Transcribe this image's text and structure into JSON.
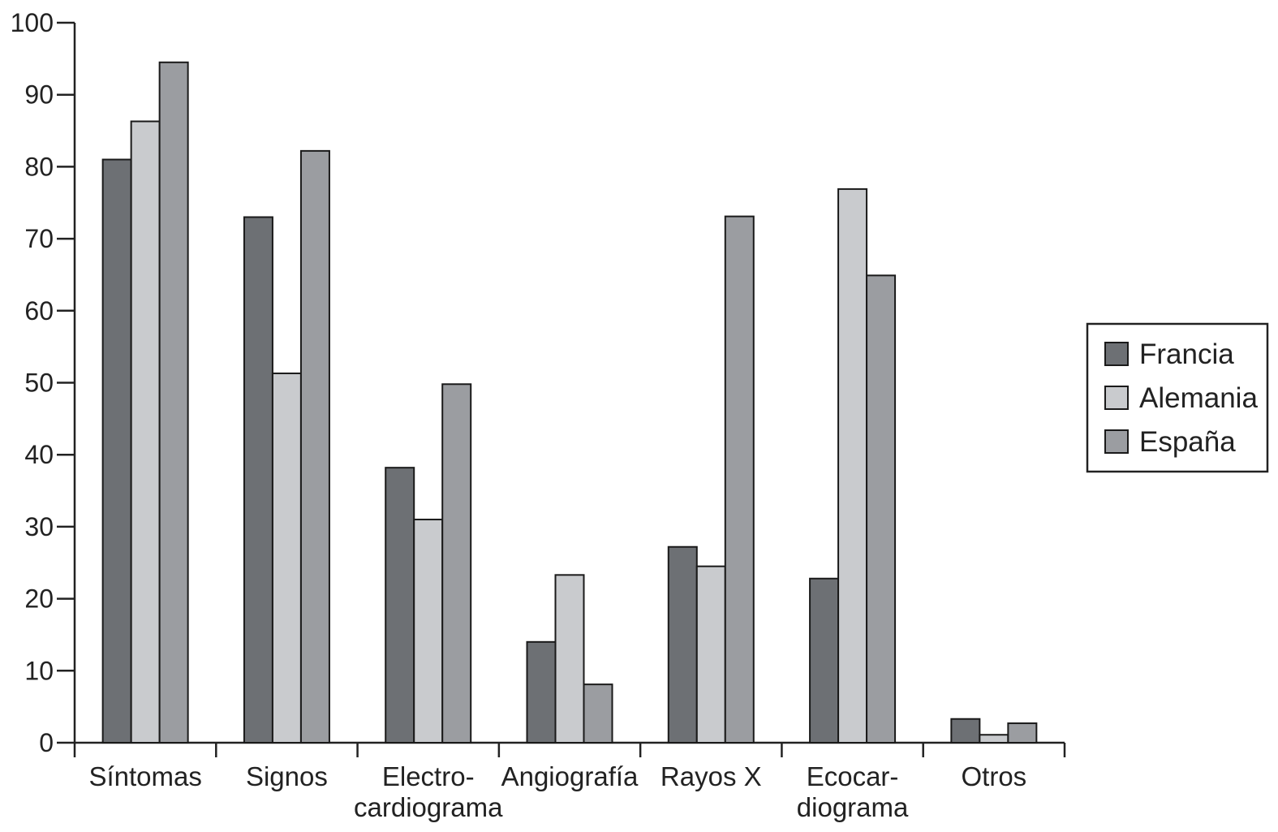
{
  "chart_data": {
    "type": "bar",
    "title": "",
    "xlabel": "",
    "ylabel": "",
    "ylim": [
      0,
      100
    ],
    "yticks": [
      0,
      10,
      20,
      30,
      40,
      50,
      60,
      70,
      80,
      90,
      100
    ],
    "grid": false,
    "legend_position": "right",
    "categories": [
      [
        "Síntomas"
      ],
      [
        "Signos"
      ],
      [
        "Electro-",
        "cardiograma"
      ],
      [
        "Angiografía"
      ],
      [
        "Rayos X"
      ],
      [
        "Ecocar-",
        "diograma"
      ],
      [
        "Otros"
      ]
    ],
    "series": [
      {
        "name": "Francia",
        "color": "#6d7074",
        "values": [
          81,
          73,
          38.2,
          14,
          27.2,
          22.8,
          3.3
        ]
      },
      {
        "name": "Alemania",
        "color": "#c9cbce",
        "values": [
          86.3,
          51.3,
          31,
          23.3,
          24.5,
          76.9,
          1.1
        ]
      },
      {
        "name": "España",
        "color": "#9b9da1",
        "values": [
          94.5,
          82.2,
          49.8,
          8.1,
          73.1,
          64.9,
          2.7
        ]
      }
    ]
  }
}
